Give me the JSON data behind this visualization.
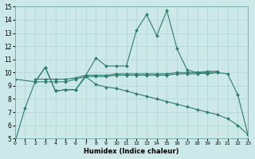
{
  "xlabel": "Humidex (Indice chaleur)",
  "bg_color": "#cce8e8",
  "line_color": "#2e7c6e",
  "grid_color": "#b0d4d4",
  "xlim": [
    0,
    23
  ],
  "ylim": [
    5,
    15
  ],
  "xticks": [
    0,
    1,
    2,
    3,
    4,
    5,
    6,
    7,
    8,
    9,
    10,
    11,
    12,
    13,
    14,
    15,
    16,
    17,
    18,
    19,
    20,
    21,
    22,
    23
  ],
  "yticks": [
    5,
    6,
    7,
    8,
    9,
    10,
    11,
    12,
    13,
    14,
    15
  ],
  "series": [
    {
      "x": [
        0,
        1,
        2,
        3,
        4,
        5,
        6,
        7,
        8,
        9,
        10,
        11,
        12,
        13,
        14,
        15,
        16,
        17,
        18,
        19,
        20,
        21,
        22,
        23
      ],
      "y": [
        4.7,
        7.3,
        9.3,
        10.4,
        8.6,
        8.7,
        8.7,
        9.8,
        11.1,
        10.5,
        10.5,
        10.5,
        13.2,
        14.4,
        12.8,
        14.7,
        11.8,
        10.2,
        10.0,
        9.9,
        10.0,
        9.9,
        8.3,
        5.3
      ]
    },
    {
      "x": [
        2,
        3,
        4,
        5,
        6,
        7,
        8,
        9,
        10,
        11,
        12,
        13,
        14,
        15,
        16,
        17,
        18,
        19,
        20
      ],
      "y": [
        9.3,
        9.3,
        9.3,
        9.3,
        9.5,
        9.7,
        9.7,
        9.7,
        9.8,
        9.8,
        9.8,
        9.8,
        9.8,
        9.8,
        9.9,
        9.9,
        9.9,
        10.0,
        10.0
      ]
    },
    {
      "x": [
        2,
        3,
        4,
        5,
        6,
        7,
        8,
        9,
        10,
        11,
        12,
        13,
        14,
        15,
        16,
        17,
        18,
        19,
        20
      ],
      "y": [
        9.5,
        9.5,
        9.5,
        9.5,
        9.6,
        9.8,
        9.8,
        9.8,
        9.9,
        9.9,
        9.9,
        9.9,
        9.9,
        9.9,
        10.0,
        10.0,
        10.0,
        10.1,
        10.1
      ]
    },
    {
      "x": [
        0,
        2,
        3,
        4,
        5,
        6,
        7,
        8,
        9,
        10,
        11,
        12,
        13,
        14,
        15,
        16,
        17,
        18,
        19,
        20,
        21,
        22,
        23
      ],
      "y": [
        9.5,
        9.3,
        10.4,
        8.6,
        8.7,
        8.7,
        9.7,
        9.1,
        8.9,
        8.8,
        8.6,
        8.4,
        8.2,
        8.0,
        7.8,
        7.6,
        7.4,
        7.2,
        7.0,
        6.8,
        6.5,
        6.0,
        5.3
      ]
    }
  ]
}
